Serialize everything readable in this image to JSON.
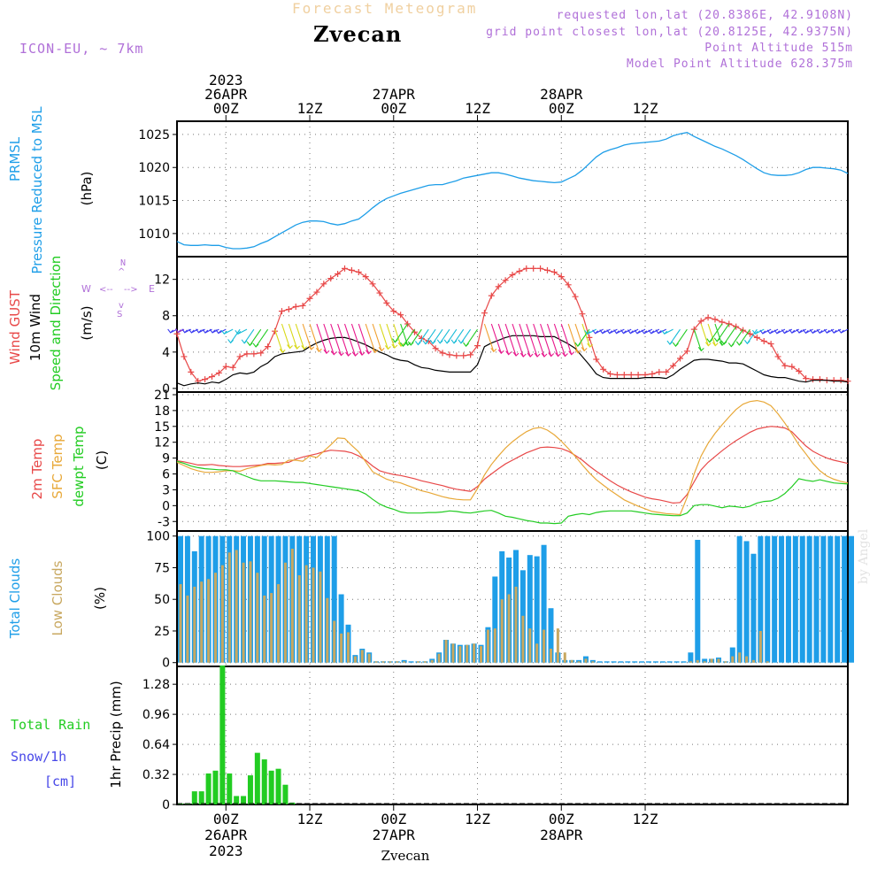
{
  "header": {
    "product": "Forecast Meteogram",
    "station": "Zvecan",
    "model": "ICON-EU, ~ 7km",
    "requested": "requested lon,lat (20.8386E, 42.9108N)",
    "gridpoint": "grid point closest lon,lat (20.8125E, 42.9375N)",
    "point_alt": "Point Altitude 515m",
    "model_alt": "Model Point Altitude 628.375m"
  },
  "footer": {
    "station": "Zvecan",
    "credit": "by Angel"
  },
  "colors": {
    "pressure": "#1e9ee8",
    "gust": "#e84848",
    "wind": "#000000",
    "barbs_label": "#22cc22",
    "t2m": "#e84848",
    "sfc": "#e8a838",
    "dewpt": "#22cc22",
    "total_clouds": "#1e9ee8",
    "low_clouds": "#c8a860",
    "rain": "#22cc22",
    "snow": "#4848e8",
    "compass": "#b070d8",
    "barb_palette": [
      "#8833cc",
      "#3a3af0",
      "#18bcd8",
      "#22cc22",
      "#d8d818",
      "#f0a030",
      "#e8178c"
    ]
  },
  "chart_data": [
    {
      "type": "line",
      "panel": "pressure",
      "ylabel_lines": [
        "PRMSL",
        "Pressure Reduced to MSL"
      ],
      "unit": "(hPa)",
      "ylim": [
        1006.5,
        1027
      ],
      "yticks": [
        1010,
        1015,
        1020,
        1025
      ],
      "x_hours_start": -7,
      "x_hours_end": 89,
      "series": [
        {
          "values": [
            1008.8,
            1008.3,
            1008.2,
            1008.2,
            1008.3,
            1008.2,
            1008.2,
            1007.9,
            1007.7,
            1007.7,
            1007.8,
            1008.0,
            1008.5,
            1008.9,
            1009.5,
            1010.1,
            1010.7,
            1011.3,
            1011.7,
            1011.9,
            1011.9,
            1011.8,
            1011.5,
            1011.3,
            1011.5,
            1011.9,
            1012.2,
            1013.0,
            1013.9,
            1014.7,
            1015.3,
            1015.7,
            1016.1,
            1016.4,
            1016.7,
            1017.0,
            1017.3,
            1017.4,
            1017.4,
            1017.7,
            1018.0,
            1018.4,
            1018.6,
            1018.8,
            1019.0,
            1019.2,
            1019.2,
            1019.0,
            1018.7,
            1018.4,
            1018.2,
            1018.0,
            1017.9,
            1017.8,
            1017.7,
            1017.8,
            1018.3,
            1018.8,
            1019.6,
            1020.6,
            1021.6,
            1022.3,
            1022.7,
            1023.0,
            1023.4,
            1023.6,
            1023.7,
            1023.8,
            1023.9,
            1024.0,
            1024.3,
            1024.8,
            1025.1,
            1025.3,
            1024.7,
            1024.2,
            1023.7,
            1023.2,
            1022.8,
            1022.3,
            1021.8,
            1021.2,
            1020.5,
            1019.8,
            1019.2,
            1018.9,
            1018.8,
            1018.8,
            1018.9,
            1019.2,
            1019.7,
            1020.0,
            1020.0,
            1019.9,
            1019.8,
            1019.6,
            1019.1
          ]
        }
      ]
    },
    {
      "type": "line",
      "panel": "wind",
      "ylabel_lines": [
        "Wind GUST",
        "10m Wind",
        "Speed and Direction"
      ],
      "unit": "(m/s)",
      "compass": {
        "n": "N",
        "s": "S",
        "w": "W",
        "e": "E",
        "arrow_n": "^",
        "arrow_s": "v",
        "arrow_w": "<--",
        "arrow_e": "-->"
      },
      "ylim": [
        -0.4,
        14.5
      ],
      "yticks": [
        0,
        4,
        8,
        12
      ],
      "x_hours_start": -7,
      "x_hours_end": 89,
      "series": [
        {
          "name": "Wind GUST",
          "markers": true,
          "values": [
            6.0,
            3.5,
            1.8,
            0.8,
            1.0,
            1.3,
            1.7,
            2.4,
            2.3,
            3.5,
            3.8,
            3.8,
            3.9,
            4.6,
            6.3,
            8.5,
            8.7,
            9.0,
            9.1,
            9.9,
            10.6,
            11.5,
            12.1,
            12.6,
            13.2,
            13.0,
            12.8,
            12.3,
            11.5,
            10.5,
            9.4,
            8.5,
            8.1,
            7.1,
            6.2,
            5.5,
            5.2,
            4.4,
            3.9,
            3.7,
            3.6,
            3.6,
            3.7,
            4.7,
            8.3,
            10.2,
            11.2,
            11.9,
            12.5,
            12.9,
            13.2,
            13.2,
            13.2,
            13.0,
            12.8,
            12.3,
            11.4,
            10.1,
            8.2,
            5.6,
            3.2,
            2.1,
            1.6,
            1.5,
            1.5,
            1.5,
            1.5,
            1.5,
            1.6,
            1.8,
            1.8,
            2.5,
            3.3,
            4.1,
            6.5,
            7.4,
            7.8,
            7.6,
            7.3,
            7.1,
            6.8,
            6.4,
            6.0,
            5.6,
            5.2,
            4.9,
            3.5,
            2.5,
            2.4,
            1.9,
            1.1,
            1.0,
            1.0,
            0.9,
            0.9,
            0.9,
            0.8
          ]
        },
        {
          "name": "10m Wind",
          "values": [
            0.6,
            0.3,
            0.5,
            0.6,
            0.5,
            0.7,
            0.6,
            1.0,
            1.5,
            1.7,
            1.6,
            1.8,
            2.4,
            2.8,
            3.5,
            3.8,
            3.9,
            4.0,
            4.1,
            4.6,
            5.0,
            5.3,
            5.5,
            5.6,
            5.6,
            5.4,
            5.1,
            4.8,
            4.4,
            4.0,
            3.7,
            3.3,
            3.1,
            3.0,
            2.6,
            2.3,
            2.2,
            2.0,
            1.9,
            1.8,
            1.8,
            1.8,
            1.8,
            2.6,
            4.6,
            5.0,
            5.3,
            5.6,
            5.8,
            5.8,
            5.8,
            5.8,
            5.7,
            5.7,
            5.7,
            5.3,
            4.9,
            4.4,
            3.5,
            2.6,
            1.6,
            1.2,
            1.1,
            1.1,
            1.1,
            1.1,
            1.1,
            1.2,
            1.2,
            1.2,
            1.1,
            1.5,
            2.1,
            2.6,
            3.1,
            3.2,
            3.2,
            3.1,
            3.0,
            2.8,
            2.8,
            2.7,
            2.3,
            1.9,
            1.5,
            1.3,
            1.2,
            1.2,
            1.0,
            0.8,
            0.7,
            0.9,
            0.9,
            0.9,
            0.8,
            0.8,
            0.7
          ]
        }
      ]
    },
    {
      "type": "line",
      "panel": "temperature",
      "ylabel_lines": [
        "2m Temp",
        "SFC Temp",
        "dewpt Temp"
      ],
      "unit": "(C)",
      "ylim": [
        -4.8,
        21.5
      ],
      "yticks": [
        -3,
        0,
        3,
        6,
        9,
        12,
        15,
        18,
        21
      ],
      "x_hours_start": -7,
      "x_hours_end": 89,
      "series": [
        {
          "name": "2m Temp",
          "values": [
            8.5,
            8.3,
            8.0,
            7.7,
            7.7,
            7.8,
            7.6,
            7.5,
            7.4,
            7.4,
            7.5,
            7.6,
            7.7,
            8.0,
            8.0,
            8.1,
            8.2,
            8.8,
            9.2,
            9.5,
            9.8,
            10.2,
            10.5,
            10.4,
            10.3,
            10.0,
            9.4,
            8.6,
            7.5,
            6.6,
            6.2,
            5.9,
            5.7,
            5.4,
            5.1,
            4.7,
            4.4,
            4.1,
            3.8,
            3.4,
            3.1,
            2.9,
            2.7,
            3.6,
            5.0,
            6.0,
            7.0,
            7.9,
            8.6,
            9.3,
            10.0,
            10.5,
            11.0,
            11.1,
            11.0,
            10.8,
            10.3,
            9.5,
            8.6,
            7.5,
            6.5,
            5.6,
            4.7,
            3.9,
            3.2,
            2.6,
            2.1,
            1.6,
            1.3,
            1.1,
            0.8,
            0.5,
            0.6,
            2.1,
            4.5,
            6.8,
            8.2,
            9.3,
            10.4,
            11.4,
            12.3,
            13.1,
            13.9,
            14.5,
            14.8,
            15.0,
            14.9,
            14.7,
            14.0,
            12.6,
            11.3,
            10.3,
            9.6,
            9.0,
            8.6,
            8.3,
            8.0
          ]
        },
        {
          "name": "SFC Temp",
          "values": [
            8.2,
            7.6,
            7.0,
            6.6,
            6.3,
            6.3,
            6.4,
            6.6,
            6.6,
            6.5,
            7.0,
            7.3,
            7.6,
            7.8,
            7.7,
            7.8,
            8.6,
            8.6,
            8.4,
            9.4,
            9.1,
            10.3,
            11.5,
            12.8,
            12.7,
            11.4,
            10.2,
            8.3,
            6.4,
            5.7,
            5.0,
            4.6,
            4.3,
            3.8,
            3.3,
            2.8,
            2.5,
            2.1,
            1.7,
            1.4,
            1.2,
            1.1,
            1.1,
            3.2,
            5.8,
            7.8,
            9.4,
            10.9,
            12.1,
            13.1,
            14.0,
            14.6,
            14.8,
            14.3,
            13.4,
            12.2,
            10.8,
            9.3,
            7.7,
            6.2,
            4.9,
            3.9,
            2.9,
            2.0,
            1.1,
            0.5,
            -0.1,
            -0.6,
            -1.1,
            -1.3,
            -1.5,
            -1.6,
            -1.7,
            1.6,
            6.0,
            9.4,
            11.8,
            13.7,
            15.3,
            16.8,
            18.2,
            19.2,
            19.7,
            19.9,
            19.6,
            18.9,
            17.4,
            15.6,
            13.6,
            11.5,
            9.8,
            8.0,
            6.6,
            5.6,
            5.0,
            4.6,
            4.3
          ]
        },
        {
          "name": "dewpt Temp",
          "values": [
            8.4,
            8.0,
            7.5,
            7.2,
            7.0,
            6.9,
            6.8,
            6.8,
            6.6,
            6.0,
            5.5,
            5.0,
            4.7,
            4.7,
            4.7,
            4.6,
            4.5,
            4.4,
            4.4,
            4.2,
            4.0,
            3.8,
            3.6,
            3.4,
            3.2,
            3.0,
            2.8,
            2.2,
            1.2,
            0.3,
            -0.3,
            -0.7,
            -1.2,
            -1.4,
            -1.4,
            -1.4,
            -1.3,
            -1.3,
            -1.2,
            -1.0,
            -1.1,
            -1.3,
            -1.4,
            -1.2,
            -1.0,
            -0.9,
            -1.4,
            -2.0,
            -2.2,
            -2.5,
            -2.8,
            -3.0,
            -3.3,
            -3.3,
            -3.4,
            -3.3,
            -2.0,
            -1.7,
            -1.5,
            -1.7,
            -1.3,
            -1.1,
            -1.0,
            -1.0,
            -1.0,
            -1.0,
            -1.2,
            -1.4,
            -1.6,
            -1.7,
            -1.8,
            -1.9,
            -1.9,
            -1.4,
            0.0,
            0.2,
            0.2,
            -0.1,
            -0.4,
            -0.1,
            -0.2,
            -0.4,
            -0.1,
            0.5,
            0.8,
            0.9,
            1.4,
            2.3,
            3.6,
            5.1,
            4.8,
            4.6,
            4.9,
            4.6,
            4.3,
            4.2,
            4.1
          ]
        }
      ]
    },
    {
      "type": "bar",
      "panel": "clouds",
      "ylabel_lines": [
        "Total Clouds",
        "Low Clouds"
      ],
      "unit": "(%)",
      "ylim": [
        -3,
        104
      ],
      "yticks": [
        0,
        25,
        50,
        75,
        100
      ],
      "x_hours_start": -7,
      "x_hours_end": 89,
      "series": [
        {
          "name": "Total Clouds",
          "values": [
            100,
            100,
            88,
            100,
            100,
            100,
            100,
            100,
            100,
            100,
            100,
            100,
            100,
            100,
            100,
            100,
            100,
            100,
            100,
            100,
            100,
            100,
            100,
            54,
            30,
            6,
            11,
            8,
            1,
            1,
            1,
            1,
            2,
            1,
            1,
            1,
            3,
            8,
            18,
            15,
            14,
            14,
            15,
            14,
            28,
            68,
            88,
            83,
            89,
            73,
            85,
            84,
            93,
            43,
            8,
            2,
            2,
            2,
            5,
            2,
            1,
            1,
            1,
            1,
            1,
            1,
            1,
            1,
            1,
            1,
            1,
            1,
            1,
            8,
            97,
            3,
            3,
            4,
            1,
            12,
            100,
            96,
            86,
            100,
            100,
            100,
            100,
            100,
            100,
            100,
            100,
            100,
            100,
            100,
            100,
            100,
            100
          ]
        },
        {
          "name": "Low Clouds",
          "values": [
            62,
            53,
            60,
            64,
            66,
            71,
            77,
            87,
            89,
            79,
            80,
            71,
            53,
            55,
            62,
            79,
            90,
            69,
            77,
            75,
            72,
            51,
            33,
            23,
            24,
            5,
            10,
            7,
            1,
            1,
            1,
            1,
            1,
            0,
            1,
            1,
            2,
            7,
            18,
            15,
            13,
            14,
            15,
            13,
            26,
            27,
            50,
            54,
            60,
            37,
            27,
            15,
            26,
            11,
            27,
            8,
            2,
            1,
            3,
            1,
            0,
            0,
            0,
            0,
            0,
            0,
            0,
            0,
            0,
            0,
            0,
            0,
            0,
            1,
            2,
            1,
            3,
            3,
            1,
            5,
            8,
            5,
            2,
            25,
            1,
            0,
            0,
            0,
            0,
            0,
            0,
            0,
            0,
            0,
            0,
            0,
            0
          ]
        }
      ]
    },
    {
      "type": "bar",
      "panel": "precip",
      "ylabel_lines": [
        "Total  Rain",
        "Snow/1h",
        "[cm]"
      ],
      "ylabel_right": "1hr Precip (mm)",
      "ylim": [
        0,
        1.47
      ],
      "yticks": [
        0,
        0.32,
        0.64,
        0.96,
        1.28
      ],
      "ytick_labels": [
        "0",
        "0.32",
        "0.64",
        "0.96",
        "1.28"
      ],
      "x_hours_start": -7,
      "x_hours_end": 89,
      "series": [
        {
          "name": "Total Rain",
          "values": [
            0.01,
            0.01,
            0.14,
            0.14,
            0.33,
            0.36,
            1.48,
            0.33,
            0.09,
            0.09,
            0.31,
            0.55,
            0.48,
            0.36,
            0.38,
            0.21,
            0.02,
            0,
            0,
            0,
            0,
            0,
            0,
            0,
            0,
            0,
            0,
            0,
            0,
            0,
            0,
            0,
            0,
            0,
            0,
            0,
            0,
            0,
            0,
            0,
            0,
            0,
            0,
            0,
            0,
            0,
            0,
            0,
            0,
            0,
            0,
            0,
            0,
            0,
            0,
            0,
            0,
            0,
            0,
            0,
            0,
            0,
            0,
            0,
            0,
            0,
            0,
            0,
            0,
            0,
            0,
            0,
            0,
            0,
            0,
            0,
            0,
            0,
            0,
            0,
            0,
            0,
            0,
            0,
            0,
            0,
            0,
            0,
            0,
            0,
            0,
            0,
            0,
            0,
            0,
            0,
            0
          ]
        },
        {
          "name": "Snow/1h",
          "values": []
        }
      ]
    }
  ],
  "time_axis": {
    "top": [
      {
        "lines": [
          "2023",
          "26APR",
          "00Z"
        ]
      },
      {
        "lines": [
          "12Z"
        ]
      },
      {
        "lines": [
          "27APR",
          "00Z"
        ]
      },
      {
        "lines": [
          "12Z"
        ]
      },
      {
        "lines": [
          "28APR",
          "00Z"
        ]
      },
      {
        "lines": [
          "12Z"
        ]
      }
    ],
    "bottom": [
      {
        "lines": [
          "00Z",
          "26APR",
          "2023"
        ]
      },
      {
        "lines": [
          "12Z"
        ]
      },
      {
        "lines": [
          "00Z",
          "27APR"
        ]
      },
      {
        "lines": [
          "12Z"
        ]
      },
      {
        "lines": [
          "00Z",
          "28APR"
        ]
      },
      {
        "lines": [
          "12Z"
        ]
      }
    ],
    "tick_hours": [
      0,
      12,
      24,
      36,
      48,
      60
    ]
  }
}
